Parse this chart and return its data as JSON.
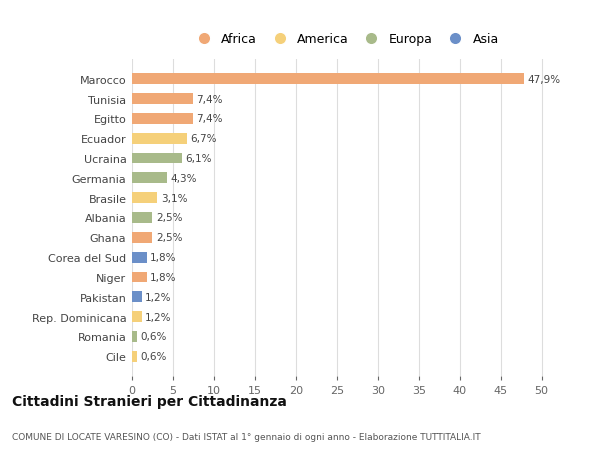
{
  "countries": [
    "Marocco",
    "Tunisia",
    "Egitto",
    "Ecuador",
    "Ucraina",
    "Germania",
    "Brasile",
    "Albania",
    "Ghana",
    "Corea del Sud",
    "Niger",
    "Pakistan",
    "Rep. Dominicana",
    "Romania",
    "Cile"
  ],
  "values": [
    47.9,
    7.4,
    7.4,
    6.7,
    6.1,
    4.3,
    3.1,
    2.5,
    2.5,
    1.8,
    1.8,
    1.2,
    1.2,
    0.6,
    0.6
  ],
  "labels": [
    "47,9%",
    "7,4%",
    "7,4%",
    "6,7%",
    "6,1%",
    "4,3%",
    "3,1%",
    "2,5%",
    "2,5%",
    "1,8%",
    "1,8%",
    "1,2%",
    "1,2%",
    "0,6%",
    "0,6%"
  ],
  "continents": [
    "Africa",
    "Africa",
    "Africa",
    "America",
    "Europa",
    "Europa",
    "America",
    "Europa",
    "Africa",
    "Asia",
    "Africa",
    "Asia",
    "America",
    "Europa",
    "America"
  ],
  "continent_colors": {
    "Africa": "#F0A875",
    "America": "#F5D07A",
    "Europa": "#A8BA8A",
    "Asia": "#6B8FC8"
  },
  "legend_order": [
    "Africa",
    "America",
    "Europa",
    "Asia"
  ],
  "xlim": [
    0,
    52
  ],
  "xticks": [
    0,
    5,
    10,
    15,
    20,
    25,
    30,
    35,
    40,
    45,
    50
  ],
  "title": "Cittadini Stranieri per Cittadinanza",
  "subtitle": "COMUNE DI LOCATE VARESINO (CO) - Dati ISTAT al 1° gennaio di ogni anno - Elaborazione TUTTITALIA.IT",
  "background_color": "#ffffff",
  "grid_color": "#dddddd",
  "bar_height": 0.55
}
